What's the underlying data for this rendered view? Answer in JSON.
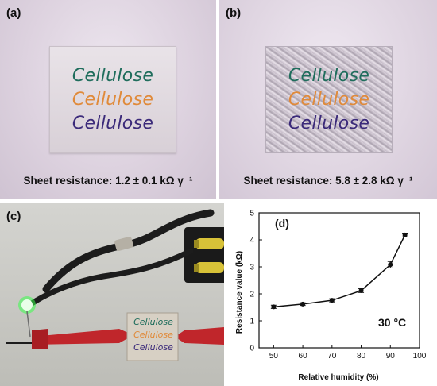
{
  "panel_a": {
    "label": "(a)",
    "words": [
      "Cellulose",
      "Cellulose",
      "Cellulose"
    ],
    "word_colors": [
      "#1f6d5c",
      "#e08a3a",
      "#3b2a7a"
    ],
    "caption": "Sheet resistance: 1.2 ± 0.1 kΩ γ⁻¹"
  },
  "panel_b": {
    "label": "(b)",
    "words": [
      "Cellulose",
      "Cellulose",
      "Cellulose"
    ],
    "word_colors": [
      "#1f6d5c",
      "#e08a3a",
      "#3b2a7a"
    ],
    "caption": "Sheet resistance: 5.8 ± 2.8 kΩ γ⁻¹"
  },
  "panel_c": {
    "label": "(c)",
    "words": [
      "Cellulose",
      "Cellulose",
      "Cellulose"
    ],
    "led_color": "#39ff4a",
    "clip_color": "#c0262b",
    "wire_color": "#1c1c1c"
  },
  "panel_d": {
    "label": "(d)",
    "annotation": "30 °C"
  },
  "chart_data": {
    "type": "line",
    "title": "",
    "xlabel": "Relative humidity (%)",
    "ylabel": "Resistance value (kΩ)",
    "x": [
      50,
      60,
      70,
      80,
      90,
      95
    ],
    "series": [
      {
        "values": [
          1.52,
          1.62,
          1.76,
          2.12,
          3.08,
          4.18
        ],
        "errors": [
          0.06,
          0.05,
          0.06,
          0.07,
          0.12,
          0.07
        ]
      }
    ],
    "xlim": [
      45,
      100
    ],
    "ylim": [
      0,
      5
    ],
    "xticks": [
      50,
      60,
      70,
      80,
      90,
      100
    ],
    "yticks": [
      0,
      1,
      2,
      3,
      4,
      5
    ],
    "grid": false,
    "legend": "none"
  }
}
